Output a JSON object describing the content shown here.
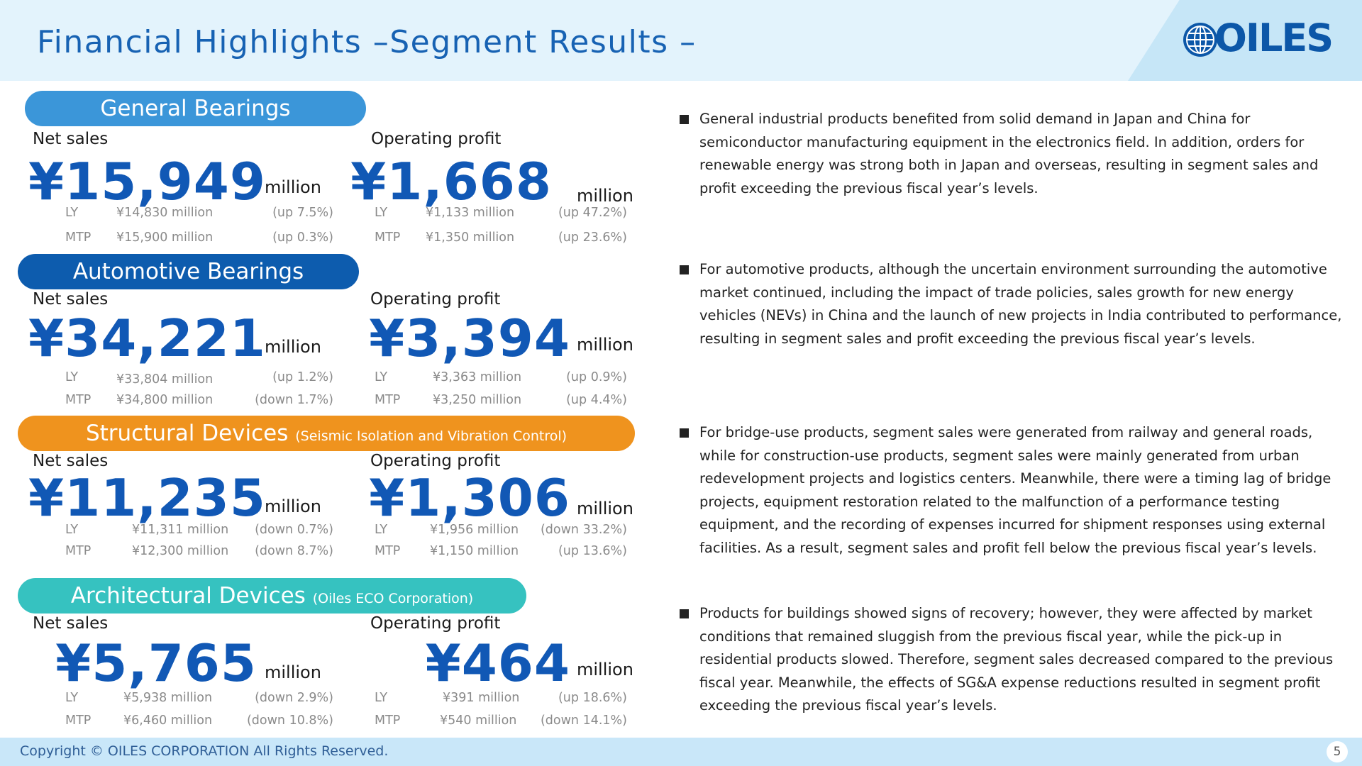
{
  "header": {
    "title": "Financial Highlights –Segment Results –",
    "logo_text": "OILES"
  },
  "colors": {
    "title_blue": "#1762b3",
    "value_blue": "#1158b5",
    "general_bearings": "#3b96d9",
    "automotive_bearings": "#0d5cae",
    "structural_devices": "#ef931e",
    "architectural_devices": "#36c2c0"
  },
  "segments": [
    {
      "name": "General Bearings",
      "sub": "",
      "net_sales": {
        "label": "Net sales",
        "value": "¥15,949",
        "unit": "million",
        "ly_label": "LY",
        "ly_value": "¥14,830 million",
        "ly_change": "(up 7.5%)",
        "mtp_label": "MTP",
        "mtp_value": "¥15,900 million",
        "mtp_change": "(up 0.3%)"
      },
      "operating_profit": {
        "label": "Operating profit",
        "value": "¥1,668",
        "unit": "million",
        "ly_label": "LY",
        "ly_value": "¥1,133 million",
        "ly_change": "(up 47.2%)",
        "mtp_label": "MTP",
        "mtp_value": "¥1,350 million",
        "mtp_change": "(up 23.6%)"
      }
    },
    {
      "name": "Automotive Bearings",
      "sub": "",
      "net_sales": {
        "label": "Net sales",
        "value": "¥34,221",
        "unit": "million",
        "ly_label": "LY",
        "ly_value": "¥33,804 million",
        "ly_change": "(up 1.2%)",
        "mtp_label": "MTP",
        "mtp_value": "¥34,800 million",
        "mtp_change": "(down 1.7%)"
      },
      "operating_profit": {
        "label": "Operating profit",
        "value": "¥3,394",
        "unit": "million",
        "ly_label": "LY",
        "ly_value": "¥3,363 million",
        "ly_change": "(up 0.9%)",
        "mtp_label": "MTP",
        "mtp_value": "¥3,250 million",
        "mtp_change": "(up 4.4%)"
      }
    },
    {
      "name": "Structural Devices",
      "sub": "(Seismic Isolation and Vibration Control)",
      "net_sales": {
        "label": "Net sales",
        "value": "¥11,235",
        "unit": "million",
        "ly_label": "LY",
        "ly_value": "¥11,311 million",
        "ly_change": "(down 0.7%)",
        "mtp_label": "MTP",
        "mtp_value": "¥12,300 million",
        "mtp_change": "(down 8.7%)"
      },
      "operating_profit": {
        "label": "Operating profit",
        "value": "¥1,306",
        "unit": "million",
        "ly_label": "LY",
        "ly_value": "¥1,956 million",
        "ly_change": "(down 33.2%)",
        "mtp_label": "MTP",
        "mtp_value": "¥1,150 million",
        "mtp_change": "(up 13.6%)"
      }
    },
    {
      "name": "Architectural Devices",
      "sub": "(Oiles ECO Corporation)",
      "net_sales": {
        "label": "Net sales",
        "value": "¥5,765",
        "unit": "million",
        "ly_label": "LY",
        "ly_value": "¥5,938 million",
        "ly_change": "(down 2.9%)",
        "mtp_label": "MTP",
        "mtp_value": "¥6,460 million",
        "mtp_change": "(down 10.8%)"
      },
      "operating_profit": {
        "label": "Operating profit",
        "value": "¥464",
        "unit": "million",
        "ly_label": "LY",
        "ly_value": "¥391 million",
        "ly_change": "(up 18.6%)",
        "mtp_label": "MTP",
        "mtp_value": "¥540 million",
        "mtp_change": "(down 14.1%)"
      }
    }
  ],
  "commentary": [
    "General industrial products benefited from solid demand in Japan and China for semiconductor manufacturing equipment in the electronics field. In addition, orders for renewable energy was strong both in Japan and overseas, resulting in segment sales and profit exceeding the previous fiscal year’s levels.",
    "For automotive products, although the uncertain environment surrounding the automotive market continued, including the impact of trade policies, sales growth for new energy vehicles (NEVs) in China and the launch of new projects in India contributed to performance, resulting in segment sales and profit exceeding the previous fiscal year’s levels.",
    "For bridge-use products, segment sales were generated from railway and general roads, while for construction-use products, segment sales were  mainly generated from urban redevelopment projects and logistics centers. Meanwhile, there were a timing lag of bridge projects, equipment restoration related to the malfunction of a performance testing equipment, and the recording of expenses incurred for shipment responses using external facilities. As a result, segment sales and profit fell below the previous fiscal year’s levels.",
    "Products for buildings showed signs of recovery; however, they were affected by market conditions that remained sluggish from the previous fiscal year, while the pick-up in residential products slowed. Therefore, segment sales decreased compared to the previous fiscal year. Meanwhile, the effects of SG&A expense reductions resulted in segment profit exceeding the previous fiscal year’s levels."
  ],
  "footer": {
    "copyright": "Copyright © OILES CORPORATION All Rights Reserved.",
    "page": "5"
  }
}
